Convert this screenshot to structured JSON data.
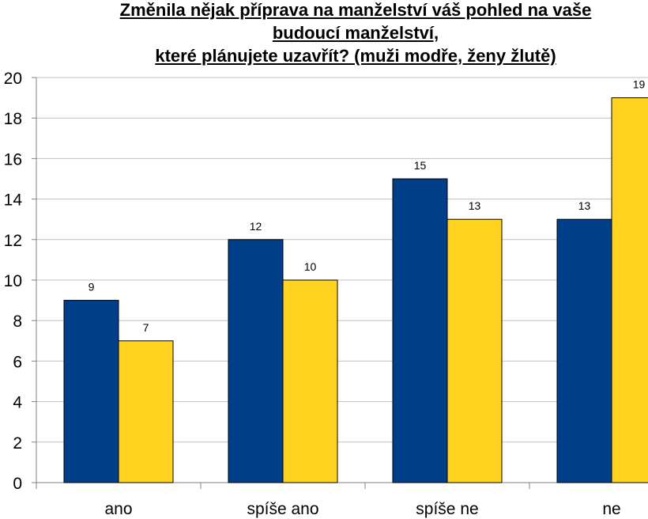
{
  "chart_data": {
    "type": "bar",
    "title_lines": [
      "Změnila nějak příprava na manželství váš pohled na vaše",
      "budoucí manželství,",
      "které plánujete uzavřít? (muži modře, ženy žlutě)"
    ],
    "categories": [
      "ano",
      "spíše ano",
      "spíše ne",
      "ne"
    ],
    "series": [
      {
        "values": [
          9,
          12,
          15,
          13
        ],
        "color": "#003F87"
      },
      {
        "values": [
          7,
          10,
          13,
          19
        ],
        "color": "#FFD320"
      }
    ],
    "ylim": [
      0,
      20
    ],
    "yticks": [
      0,
      2,
      4,
      6,
      8,
      10,
      12,
      14,
      16,
      18,
      20
    ],
    "grid": true,
    "legend": "none"
  }
}
